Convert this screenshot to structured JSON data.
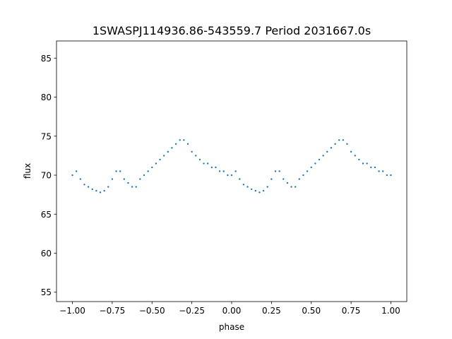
{
  "chart_data": {
    "type": "scatter",
    "title": "1SWASPJ114936.86-543559.7 Period 2031667.0s",
    "xlabel": "phase",
    "ylabel": "flux",
    "xlim": [
      -1.1,
      1.1
    ],
    "ylim": [
      53.8,
      87.2
    ],
    "xticks": [
      {
        "value": -1.0,
        "label": "−1.00"
      },
      {
        "value": -0.75,
        "label": "−0.75"
      },
      {
        "value": -0.5,
        "label": "−0.50"
      },
      {
        "value": -0.25,
        "label": "−0.25"
      },
      {
        "value": 0.0,
        "label": "0.00"
      },
      {
        "value": 0.25,
        "label": "0.25"
      },
      {
        "value": 0.5,
        "label": "0.50"
      },
      {
        "value": 0.75,
        "label": "0.75"
      },
      {
        "value": 1.0,
        "label": "1.00"
      }
    ],
    "yticks": [
      {
        "value": 55,
        "label": "55"
      },
      {
        "value": 60,
        "label": "60"
      },
      {
        "value": 65,
        "label": "65"
      },
      {
        "value": 70,
        "label": "70"
      },
      {
        "value": 75,
        "label": "75"
      },
      {
        "value": 80,
        "label": "80"
      },
      {
        "value": 85,
        "label": "85"
      }
    ],
    "grid": false,
    "marker_color": "#1f77b4",
    "series": [
      {
        "x": [
          -1.0,
          -0.975,
          -0.95,
          -0.925,
          -0.9,
          -0.875,
          -0.85,
          -0.825,
          -0.8,
          -0.775,
          -0.75,
          -0.725,
          -0.7,
          -0.675,
          -0.65,
          -0.625,
          -0.6,
          -0.575,
          -0.55,
          -0.525,
          -0.5,
          -0.475,
          -0.45,
          -0.425,
          -0.4,
          -0.375,
          -0.35,
          -0.325,
          -0.3,
          -0.275,
          -0.25,
          -0.225,
          -0.2,
          -0.175,
          -0.15,
          -0.125,
          -0.1,
          -0.075,
          -0.05,
          -0.025,
          0.0,
          0.025,
          0.05,
          0.075,
          0.1,
          0.125,
          0.15,
          0.175,
          0.2,
          0.225,
          0.25,
          0.275,
          0.3,
          0.325,
          0.35,
          0.375,
          0.4,
          0.425,
          0.45,
          0.475,
          0.5,
          0.525,
          0.55,
          0.575,
          0.6,
          0.625,
          0.65,
          0.675,
          0.7,
          0.725,
          0.75,
          0.775,
          0.8,
          0.825,
          0.85,
          0.875,
          0.9,
          0.925,
          0.95,
          0.975,
          1.0
        ],
        "y": [
          70.0,
          70.5,
          69.5,
          68.8,
          68.5,
          68.2,
          68.0,
          67.8,
          68.0,
          68.5,
          69.5,
          70.5,
          70.5,
          69.5,
          69.0,
          68.5,
          68.5,
          69.5,
          70.0,
          70.5,
          71.0,
          71.5,
          72.0,
          72.5,
          73.0,
          73.5,
          74.0,
          74.5,
          74.5,
          74.0,
          73.0,
          72.5,
          72.0,
          71.5,
          71.5,
          71.0,
          71.0,
          70.5,
          70.5,
          70.0,
          70.0,
          70.5,
          69.5,
          68.8,
          68.5,
          68.2,
          68.0,
          67.8,
          68.0,
          68.5,
          69.5,
          70.5,
          70.5,
          69.5,
          69.0,
          68.5,
          68.5,
          69.5,
          70.0,
          70.5,
          71.0,
          71.5,
          72.0,
          72.5,
          73.0,
          73.5,
          74.0,
          74.5,
          74.5,
          74.0,
          73.0,
          72.5,
          72.0,
          71.5,
          71.5,
          71.0,
          71.0,
          70.5,
          70.5,
          70.0,
          70.0
        ]
      }
    ]
  }
}
